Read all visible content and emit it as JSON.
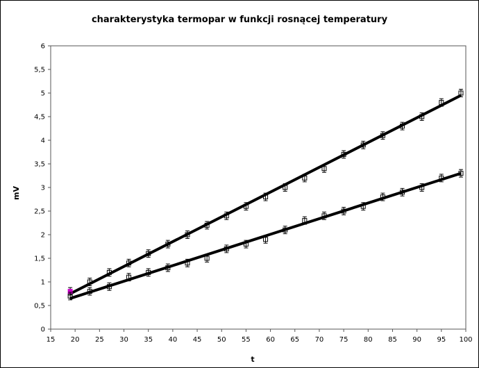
{
  "chart_data": {
    "type": "line",
    "title": "charakterystyka termopar w funkcji rosnącej temperatury",
    "xlabel": "t",
    "ylabel": "mV",
    "xlim": [
      15,
      100
    ],
    "ylim": [
      0,
      6
    ],
    "x_ticks": [
      "15",
      "20",
      "25",
      "30",
      "35",
      "40",
      "45",
      "50",
      "55",
      "60",
      "65",
      "70",
      "75",
      "80",
      "85",
      "90",
      "95",
      "100"
    ],
    "y_ticks": [
      "0",
      "0,5",
      "1",
      "1,5",
      "2",
      "2,5",
      "3",
      "3,5",
      "4",
      "4,5",
      "5",
      "5,5",
      "6"
    ],
    "grid": false,
    "error_bar": 0.08,
    "marker_color": "#000000",
    "highlight_color": "#cc00cc",
    "series": [
      {
        "x": [
          19,
          23,
          27,
          31,
          35,
          39,
          43,
          47,
          51,
          55,
          59,
          63,
          67,
          71,
          75,
          79,
          83,
          87,
          91,
          95,
          99
        ],
        "values": [
          0.8,
          1.0,
          1.2,
          1.4,
          1.6,
          1.8,
          2.0,
          2.2,
          2.4,
          2.6,
          2.8,
          3.0,
          3.2,
          3.4,
          3.7,
          3.9,
          4.1,
          4.3,
          4.5,
          4.8,
          5.0
        ],
        "trend": [
          [
            19,
            0.75
          ],
          [
            99,
            4.95
          ]
        ],
        "highlight_first": true
      },
      {
        "x": [
          19,
          23,
          27,
          31,
          35,
          39,
          43,
          47,
          51,
          55,
          59,
          63,
          67,
          71,
          75,
          79,
          83,
          87,
          91,
          95,
          99
        ],
        "values": [
          0.7,
          0.8,
          0.9,
          1.1,
          1.2,
          1.3,
          1.4,
          1.5,
          1.7,
          1.8,
          1.9,
          2.1,
          2.3,
          2.4,
          2.5,
          2.6,
          2.8,
          2.9,
          3.0,
          3.2,
          3.3
        ],
        "trend": [
          [
            19,
            0.65
          ],
          [
            99,
            3.3
          ]
        ],
        "highlight_first": false
      }
    ]
  }
}
